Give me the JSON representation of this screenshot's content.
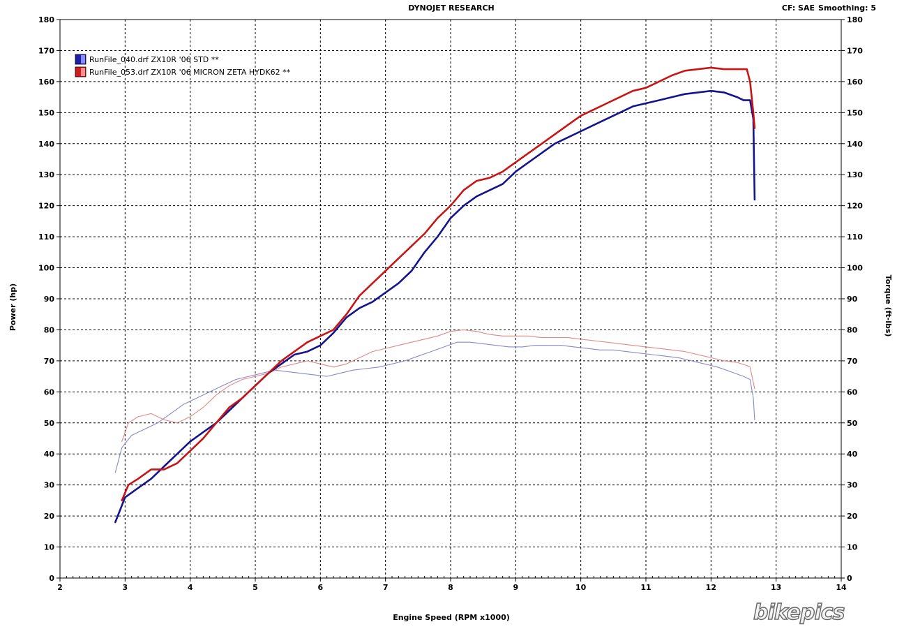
{
  "header": {
    "title": "DYNOJET RESEARCH",
    "cf_label": "CF: SAE",
    "smoothing_label": "Smoothing: 5"
  },
  "watermark": {
    "text": "bikepics"
  },
  "chart_data": {
    "type": "line",
    "title": "DYNOJET RESEARCH",
    "xlabel": "Engine Speed (RPM x1000)",
    "ylabel": "Power (hp)",
    "y2label": "Torque (ft-lbs)",
    "xlim": [
      2,
      14
    ],
    "ylim": [
      0,
      180
    ],
    "y2lim": [
      0,
      180
    ],
    "xticks": [
      "2",
      "3",
      "4",
      "5",
      "6",
      "7",
      "8",
      "9",
      "10",
      "11",
      "12",
      "13",
      "14"
    ],
    "yticks": [
      "0",
      "10",
      "20",
      "30",
      "40",
      "50",
      "60",
      "70",
      "80",
      "90",
      "100",
      "110",
      "120",
      "130",
      "140",
      "150",
      "160",
      "170",
      "180"
    ],
    "grid": true,
    "legend": [
      {
        "label": "RunFile_040.drf ZX10R '06 STD **",
        "color": "#1f1faa"
      },
      {
        "label": "RunFile_053.drf ZX10R '06 MICRON ZETA HYDK62   **",
        "color": "#cc1f1f"
      }
    ],
    "series": [
      {
        "name": "RunFile_040.drf ZX10R '06 STD **",
        "measure": "power",
        "color": "#14148c",
        "x": [
          2.85,
          3.0,
          3.2,
          3.4,
          3.6,
          3.8,
          4.0,
          4.2,
          4.4,
          4.6,
          4.8,
          5.0,
          5.2,
          5.4,
          5.6,
          5.8,
          6.0,
          6.2,
          6.4,
          6.6,
          6.8,
          7.0,
          7.2,
          7.4,
          7.6,
          7.8,
          8.0,
          8.2,
          8.4,
          8.6,
          8.8,
          9.0,
          9.2,
          9.4,
          9.6,
          9.8,
          10.0,
          10.2,
          10.4,
          10.6,
          10.8,
          11.0,
          11.2,
          11.4,
          11.6,
          11.8,
          12.0,
          12.2,
          12.4,
          12.5,
          12.6,
          12.65,
          12.67
        ],
        "y": [
          18,
          26,
          29,
          32,
          36,
          40,
          44,
          47,
          50,
          54,
          58,
          62,
          66,
          69,
          72,
          73,
          75,
          79,
          84,
          87,
          89,
          92,
          95,
          99,
          105,
          110,
          116,
          120,
          123,
          125,
          127,
          131,
          134,
          137,
          140,
          142,
          144,
          146,
          148,
          150,
          152,
          153,
          154,
          155,
          156,
          156.5,
          157,
          156.5,
          155,
          154,
          154,
          148,
          122
        ]
      },
      {
        "name": "RunFile_053.drf ZX10R '06 MICRON ZETA HYDK62   **",
        "measure": "power",
        "color": "#c81414",
        "x": [
          2.95,
          3.05,
          3.2,
          3.4,
          3.6,
          3.8,
          4.0,
          4.2,
          4.4,
          4.6,
          4.8,
          5.0,
          5.2,
          5.4,
          5.6,
          5.8,
          6.0,
          6.2,
          6.4,
          6.6,
          6.8,
          7.0,
          7.2,
          7.4,
          7.6,
          7.8,
          8.0,
          8.2,
          8.4,
          8.6,
          8.8,
          9.0,
          9.2,
          9.4,
          9.6,
          9.8,
          10.0,
          10.2,
          10.4,
          10.6,
          10.8,
          11.0,
          11.2,
          11.4,
          11.6,
          11.8,
          12.0,
          12.2,
          12.4,
          12.55,
          12.6,
          12.65,
          12.67
        ],
        "y": [
          25,
          30,
          32,
          35,
          35,
          37,
          41,
          45,
          50,
          55,
          58,
          62,
          66,
          70,
          73,
          76,
          78,
          80,
          85,
          91,
          95,
          99,
          103,
          107,
          111,
          116,
          120,
          125,
          128,
          129,
          131,
          134,
          137,
          140,
          143,
          146,
          149,
          151,
          153,
          155,
          157,
          158,
          160,
          162,
          163.5,
          164,
          164.5,
          164,
          164,
          164,
          160,
          150,
          145
        ]
      },
      {
        "name": "RunFile_040.drf ZX10R '06 STD **",
        "measure": "torque",
        "color": "#8888cc",
        "x": [
          2.85,
          2.95,
          3.1,
          3.3,
          3.5,
          3.7,
          3.9,
          4.1,
          4.3,
          4.5,
          4.7,
          4.9,
          5.1,
          5.3,
          5.5,
          5.7,
          5.9,
          6.1,
          6.3,
          6.5,
          6.7,
          6.9,
          7.1,
          7.3,
          7.5,
          7.7,
          7.9,
          8.1,
          8.3,
          8.5,
          8.7,
          8.9,
          9.1,
          9.3,
          9.5,
          9.7,
          9.9,
          10.1,
          10.3,
          10.5,
          10.7,
          10.9,
          11.1,
          11.3,
          11.5,
          11.7,
          11.9,
          12.1,
          12.3,
          12.5,
          12.6,
          12.65,
          12.67
        ],
        "y": [
          34,
          42,
          46,
          48,
          50,
          53,
          56,
          58,
          60,
          62,
          64,
          65,
          66,
          67,
          66.5,
          66,
          65.5,
          65,
          66,
          67,
          67.5,
          68,
          69,
          70,
          71.5,
          73,
          74.5,
          76,
          76,
          75.5,
          75,
          74.5,
          74.5,
          75,
          75,
          75,
          74.5,
          74,
          73.5,
          73.5,
          73,
          72.5,
          72,
          71.5,
          71,
          70,
          69,
          68,
          66.5,
          65,
          64,
          58,
          51
        ]
      },
      {
        "name": "RunFile_053.drf ZX10R '06 MICRON ZETA HYDK62   **",
        "measure": "torque",
        "color": "#e08888",
        "x": [
          2.95,
          3.05,
          3.2,
          3.4,
          3.6,
          3.8,
          4.0,
          4.2,
          4.4,
          4.6,
          4.8,
          5.0,
          5.2,
          5.4,
          5.6,
          5.8,
          6.0,
          6.2,
          6.4,
          6.6,
          6.8,
          7.0,
          7.2,
          7.4,
          7.6,
          7.8,
          8.0,
          8.2,
          8.4,
          8.6,
          8.8,
          9.0,
          9.2,
          9.4,
          9.6,
          9.8,
          10.0,
          10.2,
          10.4,
          10.6,
          10.8,
          11.0,
          11.2,
          11.4,
          11.6,
          11.8,
          12.0,
          12.2,
          12.4,
          12.55,
          12.6,
          12.65,
          12.67
        ],
        "y": [
          44,
          50,
          52,
          53,
          51,
          50,
          52,
          55,
          59,
          62,
          64,
          65,
          66,
          68,
          69,
          70,
          69,
          68,
          69,
          71,
          73,
          74,
          75,
          76,
          77,
          78,
          79.5,
          80,
          79.5,
          78.5,
          78,
          78,
          78,
          77.5,
          77.5,
          77.5,
          77,
          76.5,
          76,
          75.5,
          75,
          74.5,
          74,
          73.5,
          73,
          72,
          71,
          70,
          69.5,
          68.5,
          68,
          63,
          61
        ]
      }
    ]
  }
}
